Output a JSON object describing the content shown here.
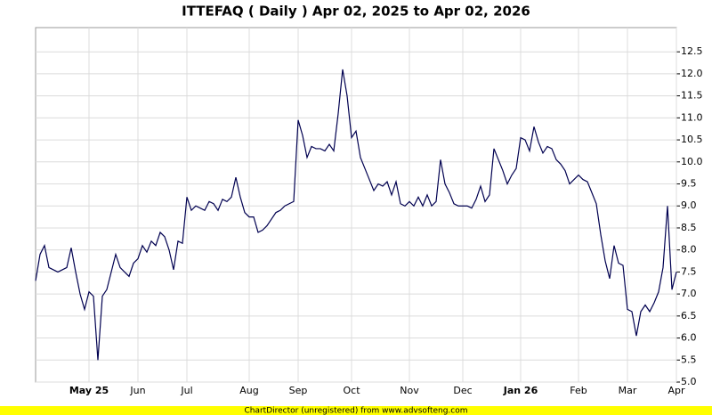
{
  "chart_data": {
    "type": "line",
    "title": "ITTEFAQ ( Daily ) Apr 02, 2025 to Apr 02, 2026",
    "footer": "ChartDirector (unregistered) from www.advsofteng.com",
    "categories": [
      null,
      null,
      null,
      null,
      null,
      null,
      null,
      null,
      null,
      null,
      null,
      null,
      "May 25",
      null,
      null,
      null,
      null,
      null,
      null,
      null,
      null,
      null,
      null,
      "Jun",
      null,
      null,
      null,
      null,
      null,
      null,
      null,
      null,
      null,
      null,
      "Jul",
      null,
      null,
      null,
      null,
      null,
      null,
      null,
      null,
      null,
      null,
      null,
      null,
      null,
      "Aug",
      null,
      null,
      null,
      null,
      null,
      null,
      null,
      null,
      null,
      null,
      "Sep",
      null,
      null,
      null,
      null,
      null,
      null,
      null,
      null,
      null,
      null,
      null,
      "Oct",
      null,
      null,
      null,
      null,
      null,
      null,
      null,
      null,
      null,
      null,
      null,
      null,
      "Nov",
      null,
      null,
      null,
      null,
      null,
      null,
      null,
      null,
      null,
      null,
      null,
      "Dec",
      null,
      null,
      null,
      null,
      null,
      null,
      null,
      null,
      null,
      null,
      null,
      null,
      "Jan 26",
      null,
      null,
      null,
      null,
      null,
      null,
      null,
      null,
      null,
      null,
      null,
      null,
      "Feb",
      null,
      null,
      null,
      null,
      null,
      null,
      null,
      null,
      null,
      null,
      "Mar",
      null,
      null,
      null,
      null,
      null,
      null,
      null,
      null,
      null,
      null,
      "Apr"
    ],
    "series": [
      {
        "color": "#000050",
        "values": [
          7.3,
          7.9,
          8.1,
          7.6,
          7.55,
          7.5,
          7.55,
          7.6,
          8.05,
          7.5,
          7.0,
          6.65,
          7.05,
          6.95,
          5.5,
          6.95,
          7.1,
          7.5,
          7.9,
          7.6,
          7.5,
          7.4,
          7.7,
          7.8,
          8.1,
          7.95,
          8.2,
          8.1,
          8.4,
          8.3,
          8.0,
          7.55,
          8.2,
          8.15,
          9.2,
          8.9,
          9.0,
          8.95,
          8.9,
          9.1,
          9.05,
          8.9,
          9.15,
          9.1,
          9.2,
          9.65,
          9.2,
          8.85,
          8.75,
          8.75,
          8.4,
          8.45,
          8.55,
          8.7,
          8.85,
          8.9,
          9.0,
          9.05,
          9.1,
          10.95,
          10.6,
          10.1,
          10.35,
          10.3,
          10.3,
          10.25,
          10.4,
          10.25,
          11.1,
          12.1,
          11.5,
          10.55,
          10.7,
          10.1,
          9.85,
          9.6,
          9.35,
          9.5,
          9.45,
          9.55,
          9.25,
          9.55,
          9.05,
          9.0,
          9.1,
          9.0,
          9.2,
          9.0,
          9.25,
          9.0,
          9.1,
          10.05,
          9.5,
          9.3,
          9.05,
          9.0,
          9.0,
          9.0,
          8.95,
          9.15,
          9.45,
          9.1,
          9.25,
          10.3,
          10.05,
          9.8,
          9.5,
          9.7,
          9.85,
          10.55,
          10.5,
          10.25,
          10.8,
          10.45,
          10.2,
          10.35,
          10.3,
          10.05,
          9.95,
          9.8,
          9.5,
          9.6,
          9.7,
          9.6,
          9.55,
          9.3,
          9.05,
          8.35,
          7.75,
          7.35,
          8.1,
          7.7,
          7.65,
          6.65,
          6.6,
          6.05,
          6.6,
          6.75,
          6.6,
          6.8,
          7.05,
          7.6,
          9.0,
          7.1,
          7.5
        ]
      }
    ],
    "ylim": [
      5,
      13.05
    ],
    "yticks": [
      {
        "value": 5,
        "label": "5.0"
      },
      {
        "value": 5.5,
        "label": "5.5"
      },
      {
        "value": 6,
        "label": "6.0"
      },
      {
        "value": 6.5,
        "label": "6.5"
      },
      {
        "value": 7,
        "label": "7.0"
      },
      {
        "value": 7.5,
        "label": "7.5"
      },
      {
        "value": 8,
        "label": "8.0"
      },
      {
        "value": 8.5,
        "label": "8.5"
      },
      {
        "value": 9,
        "label": "9.0"
      },
      {
        "value": 9.5,
        "label": "9.5"
      },
      {
        "value": 10,
        "label": "10.0"
      },
      {
        "value": 10.5,
        "label": "10.5"
      },
      {
        "value": 11,
        "label": "11.0"
      },
      {
        "value": 11.5,
        "label": "11.5"
      },
      {
        "value": 12,
        "label": "12.0"
      },
      {
        "value": 12.5,
        "label": "12.5"
      }
    ],
    "grid": true
  }
}
